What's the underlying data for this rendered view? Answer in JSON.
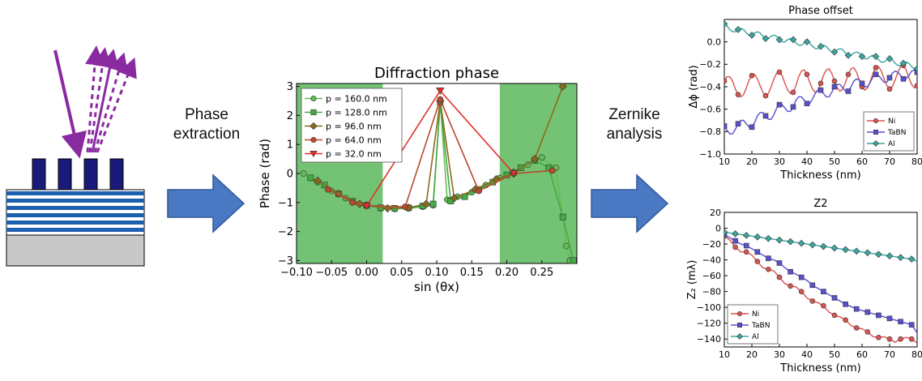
{
  "arrows": {
    "phase_extraction": "Phase\nextraction",
    "zernike_analysis": "Zernike\nanalysis"
  },
  "colors": {
    "arrow_fill": "#4a78c2",
    "multilayer_blue": "#1f5fb0",
    "absorber": "#1a1a7a",
    "substrate": "#c8c8c8",
    "beam_purple": "#8a2aa0",
    "shade_green": "#5cb85c",
    "Ni": "#d9534f",
    "TaBN": "#5a4fcf",
    "Al": "#3aa6a0"
  },
  "chart_data": [
    {
      "type": "line",
      "title": "Diffraction phase",
      "xlabel": "sin (θx)",
      "ylabel": "Phase (rad)",
      "xlim": [
        -0.1,
        0.3
      ],
      "ylim": [
        -3.1,
        3.1
      ],
      "xticks": [
        "−0.10",
        "−0.05",
        "0.00",
        "0.05",
        "0.10",
        "0.15",
        "0.20",
        "0.25"
      ],
      "yticks": [
        "3",
        "2",
        "1",
        "0",
        "−1",
        "−2",
        "−3"
      ],
      "shaded_regions": [
        [
          -0.1,
          0.023
        ],
        [
          0.19,
          0.3
        ]
      ],
      "legend": "top-left",
      "series": [
        {
          "name": "p = 160.0 nm",
          "marker": "circle",
          "color": "#66bb55",
          "x": [
            -0.09,
            -0.07,
            -0.05,
            -0.03,
            -0.01,
            0.0,
            0.02,
            0.04,
            0.06,
            0.08,
            0.095,
            0.105,
            0.115,
            0.13,
            0.15,
            0.17,
            0.19,
            0.21,
            0.23,
            0.25,
            0.27,
            0.285,
            0.29
          ],
          "y": [
            0.0,
            -0.3,
            -0.6,
            -0.85,
            -1.05,
            -1.1,
            -1.2,
            -1.22,
            -1.2,
            -1.15,
            -1.1,
            2.5,
            -0.9,
            -0.8,
            -0.65,
            -0.4,
            -0.15,
            0.05,
            0.3,
            0.55,
            0.2,
            -2.5,
            -3.0
          ]
        },
        {
          "name": "p = 128.0 nm",
          "marker": "square",
          "color": "#44aa44",
          "x": [
            -0.08,
            -0.06,
            -0.04,
            -0.02,
            0.0,
            0.02,
            0.04,
            0.06,
            0.08,
            0.095,
            0.105,
            0.12,
            0.14,
            0.16,
            0.18,
            0.2,
            0.22,
            0.24,
            0.26,
            0.28,
            0.295
          ],
          "y": [
            -0.15,
            -0.4,
            -0.7,
            -0.95,
            -1.1,
            -1.18,
            -1.2,
            -1.18,
            -1.12,
            -1.05,
            2.45,
            -0.95,
            -0.8,
            -0.55,
            -0.3,
            -0.05,
            0.2,
            0.45,
            0.2,
            -1.5,
            -3.0
          ]
        },
        {
          "name": "p = 96.0 nm",
          "marker": "diamond",
          "color": "#8a6a1e",
          "x": [
            -0.07,
            -0.04,
            -0.01,
            0.0,
            0.03,
            0.06,
            0.085,
            0.105,
            0.125,
            0.155,
            0.185,
            0.21,
            0.24,
            0.28
          ],
          "y": [
            -0.25,
            -0.7,
            -1.05,
            -1.1,
            -1.2,
            -1.18,
            -1.05,
            2.5,
            -0.85,
            -0.55,
            -0.2,
            0.0,
            0.5,
            3.0
          ]
        },
        {
          "name": "p = 64.0 nm",
          "marker": "circle",
          "color": "#b84a2e",
          "x": [
            -0.055,
            -0.02,
            0.0,
            0.055,
            0.105,
            0.16,
            0.21,
            0.265
          ],
          "y": [
            -0.55,
            -1.0,
            -1.1,
            -1.15,
            2.55,
            -0.6,
            0.0,
            0.1
          ]
        },
        {
          "name": "p = 32.0 nm",
          "marker": "triangle-down",
          "color": "#e0302a",
          "x": [
            0.0,
            0.105,
            0.21
          ],
          "y": [
            -1.12,
            2.85,
            0.0
          ]
        }
      ]
    },
    {
      "type": "line",
      "title": "Phase offset",
      "xlabel": "Thickness (nm)",
      "ylabel": "Δϕ (rad)",
      "xlim": [
        10,
        80
      ],
      "ylim": [
        -1.0,
        0.2
      ],
      "xticks": [
        "10",
        "20",
        "30",
        "40",
        "50",
        "60",
        "70",
        "80"
      ],
      "yticks": [
        "0.0",
        "−0.2",
        "−0.4",
        "−0.6",
        "−0.8",
        "−1.0"
      ],
      "legend": "bottom-right",
      "series": [
        {
          "name": "Ni",
          "marker": "circle",
          "color": "#d9534f",
          "x": [
            10,
            11,
            12,
            13,
            14,
            15,
            16,
            17,
            18,
            19,
            20,
            21,
            22,
            23,
            24,
            25,
            26,
            27,
            28,
            29,
            30,
            31,
            32,
            33,
            34,
            35,
            36,
            37,
            38,
            39,
            40,
            41,
            42,
            43,
            44,
            45,
            46,
            47,
            48,
            49,
            50,
            51,
            52,
            53,
            54,
            55,
            56,
            57,
            58,
            59,
            60,
            61,
            62,
            63,
            64,
            65,
            66,
            67,
            68,
            69,
            70,
            71,
            72,
            73,
            74,
            75,
            76,
            77,
            78,
            79,
            80
          ],
          "y": [
            -0.35,
            -0.31,
            -0.31,
            -0.35,
            -0.42,
            -0.47,
            -0.49,
            -0.47,
            -0.41,
            -0.34,
            -0.3,
            -0.29,
            -0.33,
            -0.39,
            -0.45,
            -0.48,
            -0.46,
            -0.4,
            -0.33,
            -0.28,
            -0.27,
            -0.3,
            -0.37,
            -0.43,
            -0.46,
            -0.45,
            -0.39,
            -0.31,
            -0.26,
            -0.25,
            -0.29,
            -0.36,
            -0.42,
            -0.45,
            -0.43,
            -0.37,
            -0.3,
            -0.25,
            -0.24,
            -0.28,
            -0.35,
            -0.41,
            -0.44,
            -0.42,
            -0.36,
            -0.29,
            -0.24,
            -0.23,
            -0.27,
            -0.34,
            -0.4,
            -0.43,
            -0.41,
            -0.35,
            -0.28,
            -0.23,
            -0.22,
            -0.26,
            -0.33,
            -0.39,
            -0.42,
            -0.4,
            -0.34,
            -0.27,
            -0.22,
            -0.21,
            -0.25,
            -0.32,
            -0.38,
            -0.41,
            -0.39
          ]
        },
        {
          "name": "TaBN",
          "marker": "square",
          "color": "#5a4fcf",
          "x": [
            10,
            11,
            12,
            13,
            14,
            15,
            16,
            17,
            18,
            19,
            20,
            21,
            22,
            23,
            24,
            25,
            26,
            27,
            28,
            29,
            30,
            31,
            32,
            33,
            34,
            35,
            36,
            37,
            38,
            39,
            40,
            41,
            42,
            43,
            44,
            45,
            46,
            47,
            48,
            49,
            50,
            51,
            52,
            53,
            54,
            55,
            56,
            57,
            58,
            59,
            60,
            61,
            62,
            63,
            64,
            65,
            66,
            67,
            68,
            69,
            70,
            71,
            72,
            73,
            74,
            75,
            76,
            77,
            78,
            79,
            80
          ],
          "y": [
            -0.75,
            -0.79,
            -0.82,
            -0.82,
            -0.78,
            -0.73,
            -0.7,
            -0.7,
            -0.73,
            -0.76,
            -0.76,
            -0.72,
            -0.66,
            -0.63,
            -0.63,
            -0.66,
            -0.69,
            -0.69,
            -0.65,
            -0.59,
            -0.56,
            -0.56,
            -0.59,
            -0.62,
            -0.62,
            -0.58,
            -0.52,
            -0.49,
            -0.49,
            -0.52,
            -0.55,
            -0.55,
            -0.51,
            -0.46,
            -0.43,
            -0.43,
            -0.46,
            -0.49,
            -0.49,
            -0.45,
            -0.4,
            -0.38,
            -0.38,
            -0.41,
            -0.44,
            -0.44,
            -0.4,
            -0.35,
            -0.33,
            -0.34,
            -0.37,
            -0.4,
            -0.4,
            -0.36,
            -0.31,
            -0.29,
            -0.3,
            -0.33,
            -0.36,
            -0.36,
            -0.32,
            -0.28,
            -0.26,
            -0.27,
            -0.3,
            -0.33,
            -0.33,
            -0.3,
            -0.26,
            -0.25,
            -0.27
          ]
        },
        {
          "name": "Al",
          "marker": "diamond",
          "color": "#3aa6a0",
          "x": [
            10,
            11,
            12,
            13,
            14,
            15,
            16,
            17,
            18,
            19,
            20,
            21,
            22,
            23,
            24,
            25,
            26,
            27,
            28,
            29,
            30,
            31,
            32,
            33,
            34,
            35,
            36,
            37,
            38,
            39,
            40,
            41,
            42,
            43,
            44,
            45,
            46,
            47,
            48,
            49,
            50,
            51,
            52,
            53,
            54,
            55,
            56,
            57,
            58,
            59,
            60,
            61,
            62,
            63,
            64,
            65,
            66,
            67,
            68,
            69,
            70,
            71,
            72,
            73,
            74,
            75,
            76,
            77,
            78,
            79,
            80
          ],
          "y": [
            0.16,
            0.14,
            0.11,
            0.09,
            0.09,
            0.11,
            0.12,
            0.11,
            0.08,
            0.06,
            0.06,
            0.08,
            0.09,
            0.08,
            0.05,
            0.03,
            0.03,
            0.05,
            0.06,
            0.05,
            0.02,
            0.0,
            0.0,
            0.02,
            0.03,
            0.02,
            -0.01,
            -0.03,
            -0.03,
            -0.01,
            0.0,
            -0.01,
            -0.04,
            -0.06,
            -0.06,
            -0.04,
            -0.03,
            -0.04,
            -0.07,
            -0.09,
            -0.09,
            -0.07,
            -0.06,
            -0.07,
            -0.1,
            -0.12,
            -0.12,
            -0.1,
            -0.09,
            -0.1,
            -0.13,
            -0.15,
            -0.15,
            -0.13,
            -0.12,
            -0.13,
            -0.16,
            -0.18,
            -0.18,
            -0.16,
            -0.15,
            -0.16,
            -0.19,
            -0.21,
            -0.21,
            -0.19,
            -0.18,
            -0.19,
            -0.22,
            -0.24,
            -0.24
          ]
        }
      ]
    },
    {
      "type": "line",
      "title": "Z2",
      "xlabel": "Thickness (nm)",
      "ylabel": "Z₂ (mλ)",
      "xlim": [
        10,
        80
      ],
      "ylim": [
        -150,
        20
      ],
      "xticks": [
        "10",
        "20",
        "30",
        "40",
        "50",
        "60",
        "70",
        "80"
      ],
      "yticks": [
        "20",
        "0",
        "−20",
        "−40",
        "−60",
        "−80",
        "−100",
        "−120",
        "−140"
      ],
      "legend": "bottom-left",
      "series": [
        {
          "name": "Ni",
          "marker": "circle",
          "color": "#d9534f",
          "x": [
            10,
            12,
            14,
            16,
            18,
            20,
            22,
            24,
            26,
            28,
            30,
            32,
            34,
            36,
            38,
            40,
            42,
            44,
            46,
            48,
            50,
            52,
            54,
            56,
            58,
            60,
            62,
            64,
            66,
            68,
            70,
            72,
            74,
            76,
            78,
            80
          ],
          "y": [
            -10,
            -15,
            -24,
            -30,
            -30,
            -34,
            -42,
            -50,
            -52,
            -54,
            -62,
            -70,
            -73,
            -74,
            -80,
            -88,
            -92,
            -94,
            -98,
            -106,
            -110,
            -112,
            -116,
            -123,
            -126,
            -127,
            -131,
            -137,
            -138,
            -137,
            -140,
            -144,
            -140,
            -138,
            -140,
            -145
          ]
        },
        {
          "name": "TaBN",
          "marker": "square",
          "color": "#5a4fcf",
          "x": [
            10,
            12,
            14,
            16,
            18,
            20,
            22,
            24,
            26,
            28,
            30,
            32,
            34,
            36,
            38,
            40,
            42,
            44,
            46,
            48,
            50,
            52,
            54,
            56,
            58,
            60,
            62,
            64,
            66,
            68,
            70,
            72,
            74,
            76,
            78,
            80
          ],
          "y": [
            -8,
            -12,
            -16,
            -20,
            -22,
            -26,
            -30,
            -34,
            -38,
            -40,
            -44,
            -50,
            -55,
            -58,
            -62,
            -66,
            -72,
            -76,
            -80,
            -84,
            -88,
            -92,
            -96,
            -99,
            -102,
            -104,
            -106,
            -108,
            -110,
            -112,
            -114,
            -116,
            -118,
            -120,
            -122,
            -132
          ]
        },
        {
          "name": "Al",
          "marker": "diamond",
          "color": "#3aa6a0",
          "x": [
            10,
            12,
            14,
            16,
            18,
            20,
            22,
            24,
            26,
            28,
            30,
            32,
            34,
            36,
            38,
            40,
            42,
            44,
            46,
            48,
            50,
            52,
            54,
            56,
            58,
            60,
            62,
            64,
            66,
            68,
            70,
            72,
            74,
            76,
            78,
            80
          ],
          "y": [
            -5,
            -6,
            -7,
            -8,
            -9,
            -10,
            -11,
            -12,
            -13,
            -14,
            -15,
            -16,
            -17,
            -18,
            -19,
            -20,
            -21,
            -22,
            -23,
            -24,
            -25,
            -26,
            -27,
            -28,
            -29,
            -30,
            -31,
            -32,
            -33,
            -34,
            -35,
            -36,
            -37,
            -38,
            -39,
            -42
          ]
        }
      ]
    }
  ]
}
